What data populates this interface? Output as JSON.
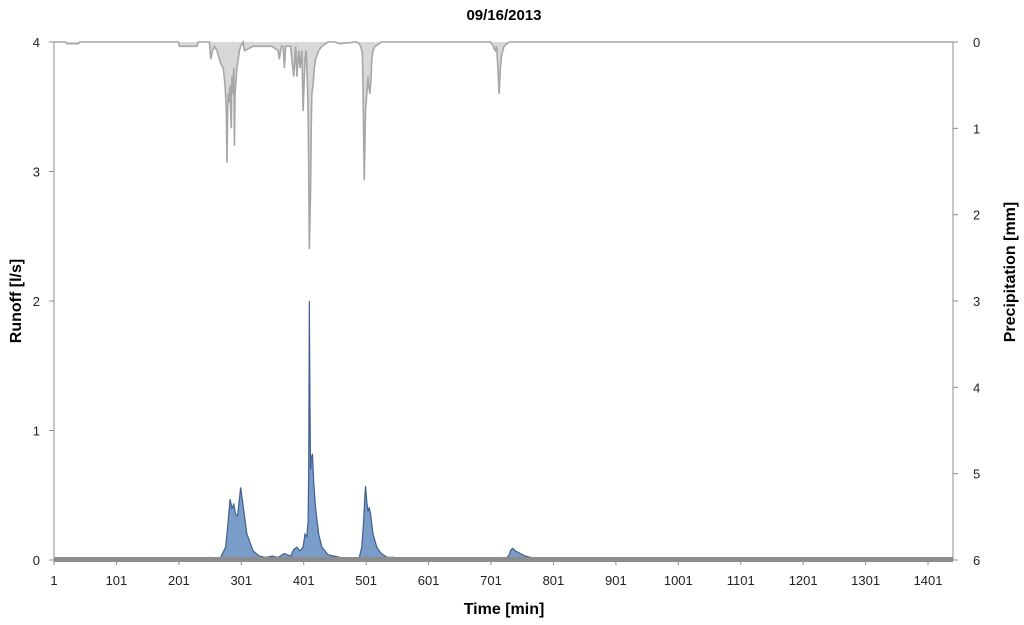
{
  "chart_data": {
    "type": "area",
    "title": "09/16/2013",
    "xlabel": "Time [min]",
    "ylabel_left": "Runoff [l/s]",
    "ylabel_right": "Precipitation [mm]",
    "xlim": [
      1,
      1441
    ],
    "ylim_left": [
      0,
      4
    ],
    "ylim_right": [
      0,
      6
    ],
    "right_axis_inverted": true,
    "x_ticks": [
      1,
      101,
      201,
      301,
      401,
      501,
      601,
      701,
      801,
      901,
      1001,
      1101,
      1201,
      1301,
      1401
    ],
    "y_ticks_left": [
      0,
      1,
      2,
      3,
      4
    ],
    "y_ticks_right": [
      0,
      1,
      2,
      3,
      4,
      5,
      6
    ],
    "grid": false,
    "legend": "none",
    "colors": {
      "runoff_fill": "#7a9cc8",
      "runoff_line": "#3f5f8f",
      "precip_fill": "#d8d8d8",
      "precip_line": "#a6a6a6",
      "baseline": "#8c8c8c"
    },
    "series": [
      {
        "axis": "left",
        "x": [
          1,
          230,
          240,
          250,
          258,
          268,
          276,
          280,
          283,
          286,
          289,
          292,
          295,
          300,
          310,
          320,
          330,
          340,
          350,
          360,
          370,
          380,
          385,
          390,
          395,
          400,
          403,
          406,
          408,
          409,
          410,
          411,
          412,
          413,
          415,
          417,
          420,
          425,
          430,
          440,
          450,
          460,
          470,
          480,
          490,
          494,
          497,
          499,
          500,
          502,
          504,
          506,
          508,
          512,
          518,
          525,
          535,
          545,
          560,
          575,
          700,
          725,
          730,
          733,
          736,
          740,
          748,
          756,
          765,
          775,
          785,
          800,
          1441
        ],
        "y": [
          0,
          0,
          0.01,
          0.02,
          0.01,
          0.02,
          0.1,
          0.3,
          0.47,
          0.4,
          0.43,
          0.35,
          0.34,
          0.56,
          0.2,
          0.07,
          0.03,
          0.02,
          0.03,
          0.02,
          0.05,
          0.03,
          0.08,
          0.1,
          0.07,
          0.1,
          0.2,
          0.18,
          0.3,
          0.7,
          2.0,
          1.2,
          0.7,
          0.78,
          0.82,
          0.6,
          0.4,
          0.2,
          0.1,
          0.04,
          0.03,
          0.02,
          0.01,
          0.01,
          0.02,
          0.1,
          0.3,
          0.5,
          0.57,
          0.45,
          0.38,
          0.4,
          0.36,
          0.2,
          0.1,
          0.05,
          0.02,
          0.02,
          0.01,
          0,
          0,
          0.01,
          0.04,
          0.08,
          0.09,
          0.07,
          0.05,
          0.03,
          0.02,
          0.01,
          0.01,
          0,
          0
        ]
      },
      {
        "axis": "right",
        "x": [
          1,
          20,
          22,
          40,
          42,
          200,
          202,
          230,
          232,
          250,
          252,
          255,
          258,
          262,
          268,
          272,
          275,
          277,
          278,
          279,
          280,
          281,
          283,
          284,
          285,
          286,
          287,
          289,
          290,
          291,
          292,
          294,
          296,
          298,
          300,
          304,
          306,
          320,
          330,
          340,
          350,
          360,
          362,
          365,
          368,
          370,
          372,
          375,
          378,
          380,
          382,
          385,
          388,
          390,
          393,
          395,
          398,
          400,
          401,
          403,
          405,
          407,
          408,
          409,
          410,
          412,
          413,
          414,
          416,
          418,
          420,
          425,
          430,
          440,
          450,
          460,
          470,
          475,
          480,
          485,
          490,
          492,
          494,
          495,
          496,
          497,
          498,
          499,
          500,
          502,
          504,
          505,
          507,
          509,
          510,
          512,
          515,
          520,
          525,
          530,
          540,
          560,
          700,
          705,
          706,
          708,
          710,
          712,
          714,
          716,
          718,
          720,
          722,
          725,
          730,
          735,
          1441
        ],
        "y": [
          0,
          0,
          0.02,
          0.02,
          0,
          0,
          0.05,
          0.05,
          0,
          0,
          0.2,
          0.1,
          0.05,
          0.1,
          0.25,
          0.3,
          0.5,
          0.8,
          1.4,
          0.9,
          0.6,
          0.7,
          0.5,
          0.8,
          1.0,
          0.4,
          0.6,
          0.3,
          1.2,
          0.6,
          0.5,
          0.3,
          0.2,
          0.1,
          0.05,
          0,
          0.1,
          0.05,
          0.05,
          0.05,
          0.05,
          0.1,
          0.2,
          0.05,
          0.05,
          0.3,
          0.05,
          0.05,
          0.05,
          0.05,
          0.2,
          0.4,
          0.05,
          0.4,
          0.1,
          0.3,
          0.1,
          0.8,
          0.6,
          0.2,
          0.1,
          0.5,
          0.8,
          1.5,
          2.4,
          1.7,
          1.0,
          0.6,
          0.5,
          0.3,
          0.2,
          0.1,
          0.05,
          0,
          0,
          0.02,
          0.01,
          0.01,
          0,
          0,
          0.02,
          0.05,
          0.1,
          0.15,
          0.5,
          1.1,
          1.6,
          1.2,
          0.8,
          0.6,
          0.4,
          0.5,
          0.6,
          0.4,
          0.2,
          0.1,
          0.05,
          0.03,
          0,
          0,
          0,
          0,
          0,
          0.05,
          0.08,
          0.1,
          0.05,
          0.3,
          0.6,
          0.3,
          0.15,
          0.1,
          0.05,
          0.03,
          0,
          0,
          0
        ]
      }
    ]
  }
}
